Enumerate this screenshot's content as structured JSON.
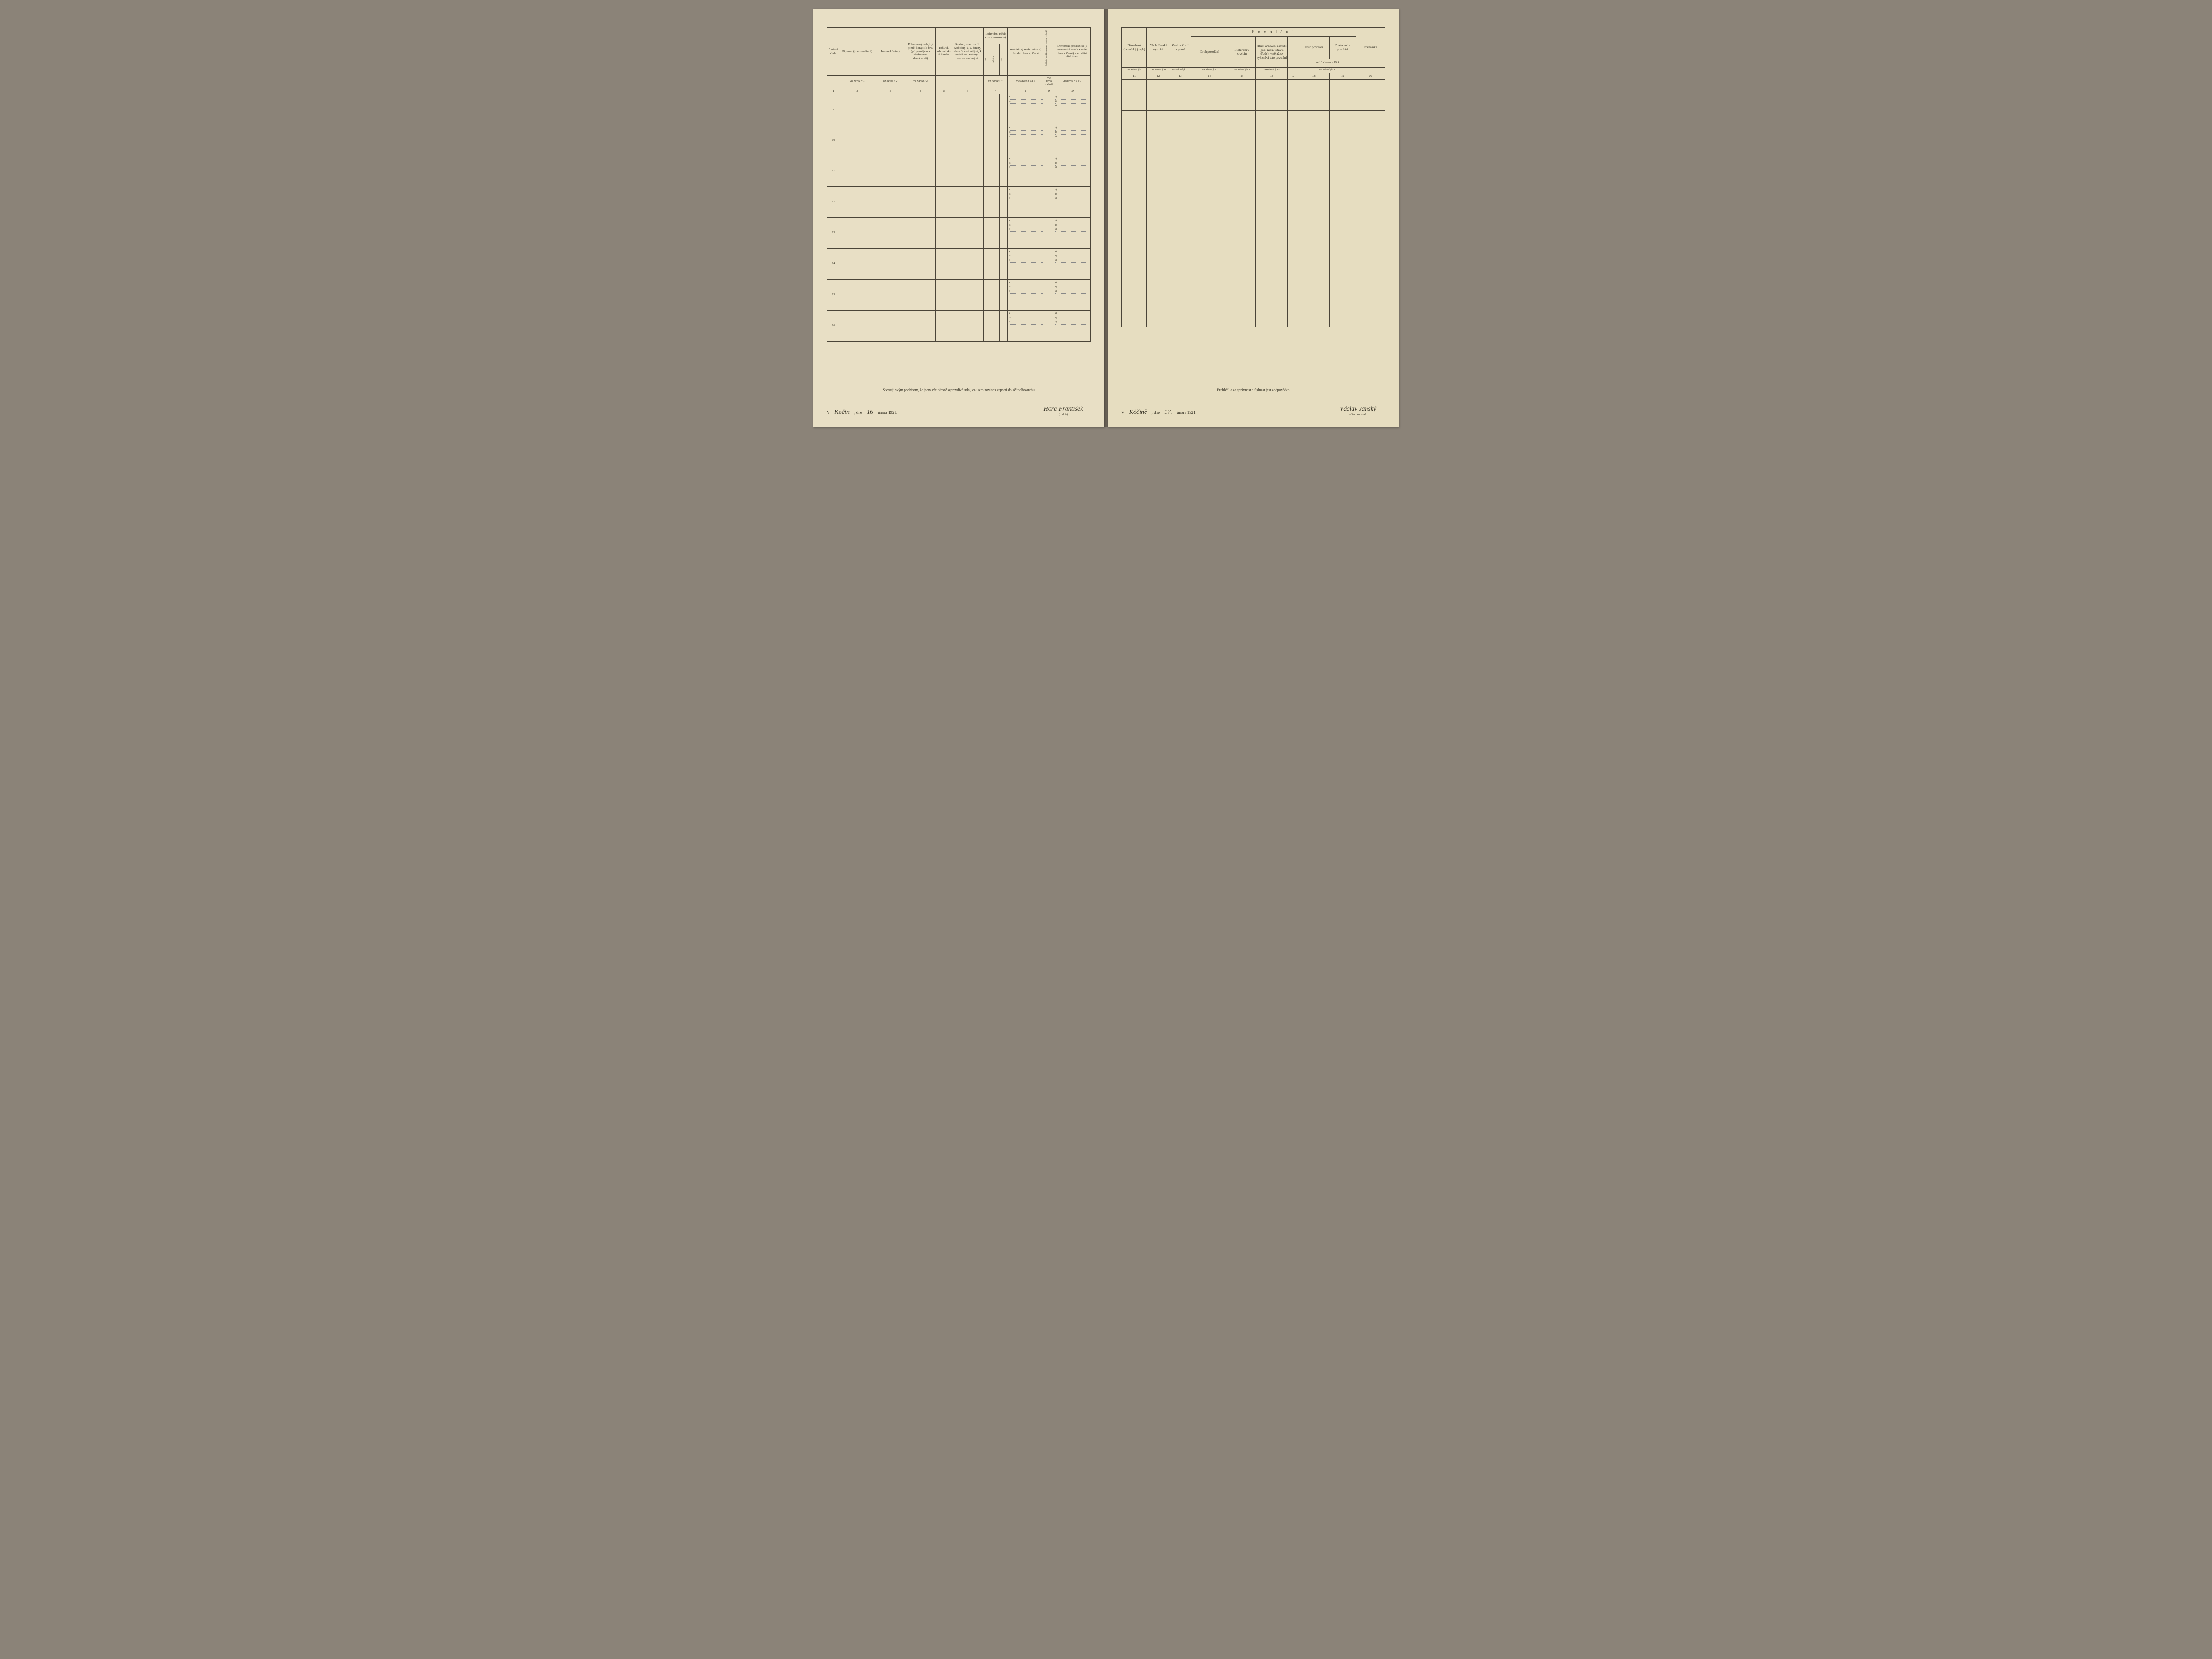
{
  "left": {
    "columns": {
      "c1": {
        "header": "Řadové\nčíslo",
        "ref": "",
        "num": "1"
      },
      "c2": {
        "header": "Příjmení\n(jméno rodinné)",
        "ref": "viz návod § 1",
        "num": "2"
      },
      "c3": {
        "header": "Jméno\n(křestní)",
        "ref": "viz návod § 2",
        "num": "3"
      },
      "c4": {
        "header": "Příbuzenský\nneb jiný poměr\nk majiteli bytu\n(při podnájmu\nk přednostovi\ndomácnosti)",
        "ref": "viz návod § 3",
        "num": "4"
      },
      "c5": {
        "header": "Pohlaví,\nzda\nmužské\nči\nženské",
        "ref": "",
        "num": "5"
      },
      "c6": {
        "header": "Rodinný\nstav, zda\n1. svobodný -á,\n2. ženatý, vdaná\n3. ovdovělý -á,\n4. soudně roz-\nvedený -á neb\nrozloučený -á",
        "ref": "",
        "num": "6"
      },
      "c7": {
        "header": "Rodný den,\nměsíc a rok\n(narozen -a)",
        "sub": [
          "dne",
          "měsíce",
          "roku"
        ],
        "ref": "viz návod § 4",
        "num": "7"
      },
      "c8": {
        "header": "Rodiště:\na) Rodná obec\nb) Soudní okres\nc) Země",
        "ref": "viz návod § 4 a 5",
        "num": "8"
      },
      "c9": {
        "header": "Od kdy bydlí zapsaná\nosoba v obci?",
        "ref": "viz\nnávod\n§ 4 a 6",
        "num": "9"
      },
      "c10": {
        "header": "Domovská\npříslušnost\n(a Domovská obec\nb Soudní okres\nc Země)\naneb\nstátní\npříslušnost",
        "ref": "viz návod § 4 a 7",
        "num": "10"
      }
    },
    "row_numbers": [
      "9",
      "10",
      "11",
      "12",
      "13",
      "14",
      "15",
      "16"
    ],
    "abc_labels": {
      "a": "a)",
      "b": "b)",
      "c": "c)"
    },
    "footer": {
      "statement": "Stvrzuji svým podpisem, že jsem vše přesně a pravdivě udal, co jsem povinen zapsati do sčítacího archu",
      "place_prefix": "V",
      "place": "Kočin",
      "date_prefix": ", dne",
      "date_day": "16",
      "date_rest": "února 1921.",
      "signature": "Hora František",
      "sig_label": "(podpis)"
    }
  },
  "right": {
    "group_header": "P o v o l á n í",
    "columns": {
      "c11": {
        "header": "Národnost\n(mateřský\njazyk)",
        "ref": "viz návod § 8",
        "num": "11"
      },
      "c12": {
        "header": "Ná-\nboženské\nvyznání",
        "ref": "viz návod § 9",
        "num": "12"
      },
      "c13": {
        "header": "Znalost\nčtení\na psaní",
        "ref": "viz návod § 10",
        "num": "13"
      },
      "c14": {
        "header": "Druh povolání",
        "ref": "viz návod § 11",
        "num": "14"
      },
      "c15": {
        "header": "Postavení\nv povolání",
        "ref": "viz návod § 12",
        "num": "15"
      },
      "c16": {
        "header": "Bližší označení\nzávodu (pod-\nniku, ústavu,\núřadu), v němž\nse vykonává\ntoto povolání",
        "ref": "viz návod § 13",
        "num": "16"
      },
      "c17": {
        "header": "",
        "num": "17"
      },
      "c18_header": "dne 16. července 1914",
      "c18": {
        "header": "Druh povolání",
        "ref": "viz návod § 14",
        "num": "18"
      },
      "c19": {
        "header": "Postavení\nv povolání",
        "num": "19"
      },
      "c20": {
        "header": "Poznámka",
        "num": "20"
      }
    },
    "data_row_count": 8,
    "footer": {
      "statement": "Prohlédl a za správnost a úplnost jest zodpověden",
      "place_prefix": "V",
      "place": "Kóčíně",
      "date_prefix": ", dne",
      "date_day": "17.",
      "date_rest": "února 1921.",
      "signature": "Václav Janský",
      "sig_label": "sčítací komisař."
    }
  },
  "colors": {
    "paper": "#e8dfc5",
    "paper_right": "#e6ddc0",
    "ink": "#3a3628",
    "border": "#4a4438",
    "background": "#8b8378"
  }
}
